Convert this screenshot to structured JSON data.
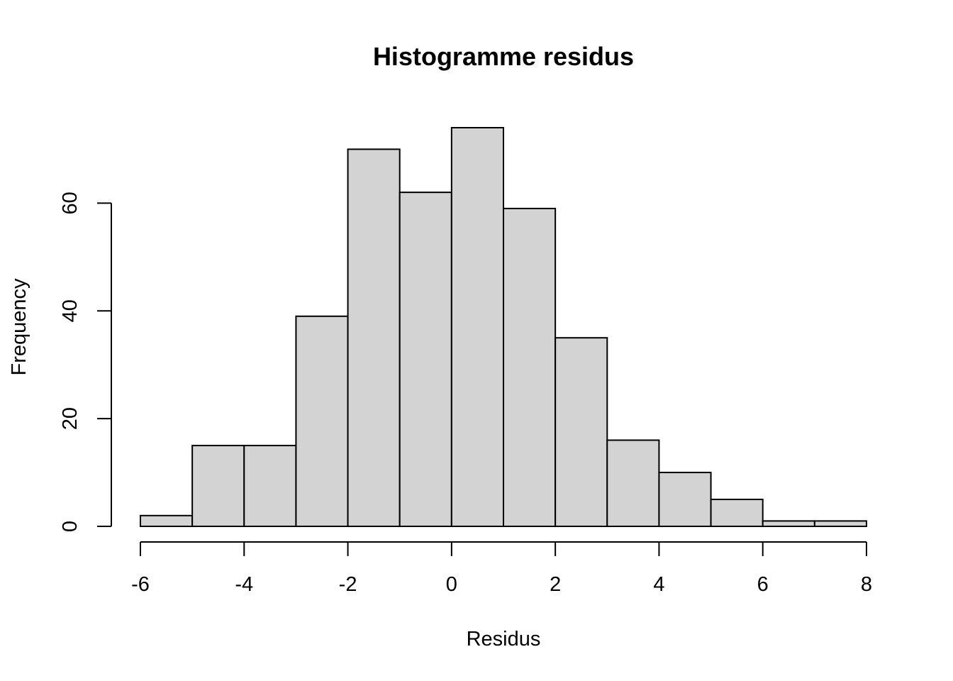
{
  "chart_data": {
    "type": "bar",
    "title": "Histogramme residus",
    "xlabel": "Residus",
    "ylabel": "Frequency",
    "bin_edges": [
      -6,
      -5,
      -4,
      -3,
      -2,
      -1,
      0,
      1,
      2,
      3,
      4,
      5,
      6,
      7,
      8
    ],
    "values": [
      2,
      15,
      15,
      39,
      70,
      62,
      74,
      59,
      35,
      16,
      10,
      5,
      1,
      1
    ],
    "xlim": [
      -6,
      8
    ],
    "ylim": [
      0,
      74
    ],
    "x_ticks": [
      -6,
      -4,
      -2,
      0,
      2,
      4,
      6,
      8
    ],
    "y_ticks": [
      0,
      20,
      40,
      60
    ],
    "bar_color": "#d3d3d3",
    "grid": false
  }
}
